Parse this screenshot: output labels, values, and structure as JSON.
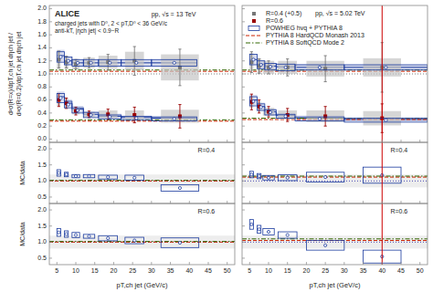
{
  "chart_data": [
    {
      "type": "errorbar",
      "xlim": [
        3,
        52
      ],
      "xticks": [
        5,
        10,
        15,
        20,
        25,
        30,
        35,
        40,
        45,
        50
      ],
      "ylim": [
        -0.05,
        2.05
      ],
      "yticks": [
        {
          "value": 0,
          "label": "0.0"
        },
        0.2,
        0.4,
        0.6,
        0.8,
        {
          "value": 1,
          "label": "1.0"
        },
        1.2,
        1.4,
        1.6,
        1.8,
        {
          "value": 2,
          "label": "2.0"
        }
      ],
      "tick_labels": "y",
      "ylabel": "d²σ(R=x)/dpT,ch jet dηch jet / d²σ(R=0.2)/dpT,ch jet dηch jet",
      "annotations": [
        "ALICE",
        "charged jets with D⁰, 2 < pT,D⁰ < 36 GeV/c",
        "anti-kT, |ηch jet| < 0.9−R",
        "pp, √s = 13 TeV"
      ],
      "reference_line": {
        "value": 1,
        "color": "#444444"
      },
      "series": [
        {
          "type": "errorbar",
          "color": "#777777",
          "marker": "square",
          "x": [
            5.5,
            7.5,
            10.0,
            13.5,
            18.5,
            25.5,
            37.5
          ],
          "values": [
            1.22,
            1.18,
            1.15,
            1.17,
            1.18,
            1.2,
            1.1
          ],
          "errors": [
            0.13,
            0.09,
            0.07,
            0.08,
            0.12,
            0.22,
            0.28
          ],
          "syst": [
            0.14,
            0.1,
            0.08,
            0.08,
            0.1,
            0.14,
            0.2
          ],
          "widths": [
            0.5,
            0.5,
            1.0,
            1.5,
            2.5,
            2.5,
            5.0
          ]
        },
        {
          "type": "errorbar",
          "color": "#990000",
          "marker": "square",
          "x": [
            5.5,
            7.5,
            10.0,
            13.5,
            18.5,
            25.5,
            37.5
          ],
          "values": [
            0.6,
            0.55,
            0.43,
            0.38,
            0.38,
            0.37,
            0.35
          ],
          "errors": [
            0.1,
            0.08,
            0.06,
            0.05,
            0.08,
            0.12,
            0.18
          ],
          "syst": [
            0.09,
            0.07,
            0.05,
            0.04,
            0.06,
            0.07,
            0.1
          ],
          "widths": [
            0.5,
            0.5,
            1.0,
            1.5,
            2.5,
            2.5,
            5.0
          ]
        },
        {
          "type": "box",
          "color": "#1a3a9e",
          "marker": "circle",
          "x": [
            6.0,
            8.0,
            10.5,
            14.0,
            19.0,
            26.0,
            36.0
          ],
          "values": [
            1.26,
            1.2,
            1.17,
            1.17,
            1.17,
            1.17,
            1.17
          ],
          "errors": [
            0.08,
            0.06,
            0.05,
            0.05,
            0.05,
            0.05,
            0.05
          ],
          "widths": [
            1.0,
            1.0,
            1.5,
            2.0,
            3.0,
            4.0,
            6.0
          ]
        },
        {
          "type": "box",
          "color": "#1a3a9e",
          "marker": "circle",
          "x": [
            6.0,
            8.0,
            10.5,
            14.0,
            19.0,
            26.0,
            36.0
          ],
          "values": [
            0.63,
            0.53,
            0.44,
            0.37,
            0.34,
            0.32,
            0.31
          ],
          "errors": [
            0.07,
            0.05,
            0.04,
            0.04,
            0.03,
            0.03,
            0.03
          ],
          "widths": [
            1.0,
            1.0,
            1.5,
            2.0,
            3.0,
            4.0,
            6.0
          ]
        },
        {
          "type": "step",
          "color": "#1a3a9e",
          "bins": [
            5,
            7,
            9,
            12,
            16,
            22,
            30,
            42
          ],
          "values": [
            1.28,
            1.2,
            1.17,
            1.17,
            1.17,
            1.17,
            1.17
          ],
          "errors": [
            0.09,
            0.06,
            0.05,
            0.05,
            0.05,
            0.05,
            0.05
          ]
        },
        {
          "type": "step",
          "color": "#1a3a9e",
          "bins": [
            5,
            7,
            9,
            12,
            16,
            22,
            30,
            42
          ],
          "values": [
            0.65,
            0.55,
            0.46,
            0.38,
            0.35,
            0.33,
            0.32
          ],
          "errors": [
            0.08,
            0.06,
            0.05,
            0.04,
            0.04,
            0.03,
            0.03
          ]
        },
        {
          "type": "hline",
          "color": "#cc2200",
          "line_style": "dashed",
          "value": 1.04
        },
        {
          "type": "hline",
          "color": "#336600",
          "line_style": "dashdot",
          "value": 1.06
        },
        {
          "type": "hline",
          "color": "#cc2200",
          "line_style": "dashed",
          "value": 0.275
        },
        {
          "type": "hline",
          "color": "#336600",
          "line_style": "dashdot",
          "value": 0.295
        }
      ]
    },
    {
      "type": "errorbar",
      "xlim": [
        3,
        52
      ],
      "xticks": [
        5,
        10,
        15,
        20,
        25,
        30,
        35,
        40,
        45,
        50
      ],
      "ylim": [
        -0.05,
        2.05
      ],
      "yticks": [
        {
          "value": 0,
          "label": "0.0"
        },
        0.2,
        0.4,
        0.6,
        0.8,
        {
          "value": 1,
          "label": "1.0"
        },
        1.2,
        1.4,
        1.6,
        1.8,
        {
          "value": 2,
          "label": "2.0"
        }
      ],
      "tick_labels": false,
      "legend": "upper left",
      "annotations": [
        "pp, √s = 5.02 TeV"
      ],
      "reference_line": {
        "value": 1,
        "color": "#444444"
      },
      "vline": {
        "value": 40.0,
        "color": "#cc0000"
      },
      "series": [
        {
          "name": "R=0.4 (+0.5)",
          "type": "errorbar",
          "color": "#777777",
          "marker": "square",
          "x": [
            5.5,
            7.5,
            10.0,
            15.0,
            25.0,
            40.0
          ],
          "values": [
            1.18,
            1.12,
            1.1,
            1.1,
            1.08,
            1.1
          ],
          "errors": [
            0.16,
            0.11,
            0.1,
            0.13,
            0.2,
            0.38
          ],
          "syst": [
            0.14,
            0.12,
            0.1,
            0.1,
            0.12,
            0.14
          ],
          "widths": [
            0.5,
            0.5,
            1.5,
            2.5,
            5.0,
            5.0
          ]
        },
        {
          "name": "R=0.6",
          "type": "errorbar",
          "color": "#990000",
          "marker": "square",
          "x": [
            5.5,
            7.5,
            10.0,
            15.0,
            25.0,
            40.0
          ],
          "values": [
            0.57,
            0.5,
            0.42,
            0.37,
            0.35,
            0.32
          ],
          "errors": [
            0.12,
            0.1,
            0.08,
            0.1,
            0.15,
            0.22
          ],
          "syst": [
            0.09,
            0.08,
            0.06,
            0.07,
            0.09,
            0.11
          ],
          "widths": [
            0.5,
            0.5,
            1.5,
            2.5,
            5.0,
            5.0
          ]
        },
        {
          "name": "POWHEG hvq + PYTHIA 8",
          "type": "box",
          "color": "#1a3a9e",
          "marker": "circle",
          "x": [
            6.0,
            8.0,
            10.5,
            14.5,
            23.5,
            41.0
          ],
          "values": [
            1.22,
            1.14,
            1.11,
            1.1,
            1.1,
            1.1
          ],
          "errors": [
            0.08,
            0.06,
            0.05,
            0.05,
            0.04,
            0.04
          ],
          "widths": [
            1.0,
            1.0,
            1.5,
            2.5,
            6.5,
            11.0
          ]
        },
        {
          "type": "box",
          "color": "#1a3a9e",
          "marker": "circle",
          "x": [
            6.0,
            8.0,
            10.5,
            14.5,
            23.5,
            41.0
          ],
          "values": [
            0.58,
            0.49,
            0.41,
            0.35,
            0.31,
            0.29
          ],
          "errors": [
            0.07,
            0.05,
            0.04,
            0.03,
            0.03,
            0.03
          ],
          "widths": [
            1.0,
            1.0,
            1.5,
            2.5,
            6.5,
            11.0
          ]
        },
        {
          "type": "step",
          "color": "#1a3a9e",
          "bins": [
            5,
            7,
            9,
            12,
            17,
            30,
            52
          ],
          "values": [
            1.22,
            1.15,
            1.12,
            1.11,
            1.1,
            1.1
          ],
          "errors": [
            0.08,
            0.06,
            0.05,
            0.05,
            0.05,
            0.04
          ]
        },
        {
          "type": "step",
          "color": "#1a3a9e",
          "bins": [
            5,
            7,
            9,
            12,
            17,
            30,
            52
          ],
          "values": [
            0.6,
            0.5,
            0.42,
            0.36,
            0.32,
            0.3
          ],
          "errors": [
            0.08,
            0.06,
            0.05,
            0.04,
            0.04,
            0.03
          ]
        },
        {
          "name": "PYTHIA 8 HardQCD Monash 2013",
          "type": "hline",
          "color": "#cc2200",
          "line_style": "dashed",
          "value": 1.04
        },
        {
          "name": "PYTHIA 8 SoftQCD Mode 2",
          "type": "hline",
          "color": "#336600",
          "line_style": "dashdot",
          "value": 1.06
        },
        {
          "type": "hline",
          "color": "#cc2200",
          "line_style": "dashed",
          "value": 0.3
        },
        {
          "type": "hline",
          "color": "#336600",
          "line_style": "dashdot",
          "value": 0.32
        }
      ]
    },
    {
      "type": "ratio",
      "xlim": [
        3,
        52
      ],
      "xticks": [
        5,
        10,
        15,
        20,
        25,
        30,
        35,
        40,
        45,
        50
      ],
      "ylim": [
        0.3,
        2.2
      ],
      "yticks": [
        0.5,
        {
          "value": 1,
          "label": "1.0"
        },
        1.5,
        {
          "value": 2,
          "label": "2.0"
        }
      ],
      "tick_labels": "y",
      "ylabel": "MC/data",
      "annotations": [
        "R=0.4"
      ],
      "band": {
        "values": [
          0.8,
          1.2
        ],
        "color": "#cccccc"
      },
      "reference_line": {
        "value": 1.0,
        "color": "#000099"
      },
      "series": [
        {
          "type": "box",
          "color": "#1a3a9e",
          "marker": "circle",
          "x": [
            5.5,
            7.5,
            10.0,
            13.5,
            18.5,
            25.5,
            37.5
          ],
          "values": [
            1.25,
            1.2,
            1.15,
            1.15,
            1.12,
            1.1,
            0.78
          ],
          "errors": [
            0.1,
            0.07,
            0.05,
            0.05,
            0.06,
            0.08,
            0.1
          ],
          "widths": [
            0.5,
            0.5,
            1.0,
            1.5,
            2.5,
            2.5,
            5.0
          ]
        },
        {
          "type": "hline",
          "color": "#cc2200",
          "line_style": "dashed",
          "value": 1.0
        },
        {
          "type": "hline",
          "color": "#336600",
          "line_style": "dashdot",
          "value": 1.02
        }
      ]
    },
    {
      "type": "ratio",
      "xlim": [
        3,
        52
      ],
      "xticks": [
        5,
        10,
        15,
        20,
        25,
        30,
        35,
        40,
        45,
        50
      ],
      "ylim": [
        0.3,
        2.2
      ],
      "yticks": [
        0.5,
        {
          "value": 1,
          "label": "1.0"
        },
        1.5,
        {
          "value": 2,
          "label": "2.0"
        }
      ],
      "tick_labels": false,
      "annotations": [
        "R=0.4"
      ],
      "band": {
        "values": [
          0.8,
          1.2
        ],
        "color": "#cccccc"
      },
      "reference_line": {
        "value": 1.0,
        "color": "#000099"
      },
      "vline": {
        "value": 40.0,
        "color": "#cc0000"
      },
      "series": [
        {
          "type": "box",
          "color": "#1a3a9e",
          "marker": "circle",
          "x": [
            5.5,
            7.5,
            10.0,
            15.0,
            25.0,
            40.0
          ],
          "values": [
            1.2,
            1.15,
            1.1,
            1.1,
            1.12,
            1.18
          ],
          "errors": [
            0.1,
            0.08,
            0.07,
            0.09,
            0.15,
            0.25
          ],
          "widths": [
            0.5,
            0.5,
            1.5,
            2.5,
            5.0,
            5.0
          ]
        },
        {
          "type": "hline",
          "color": "#cc2200",
          "line_style": "dashed",
          "value": 1.12
        },
        {
          "type": "hline",
          "color": "#336600",
          "line_style": "dashdot",
          "value": 1.15
        }
      ]
    },
    {
      "type": "ratio",
      "xlim": [
        3,
        52
      ],
      "xticks": [
        5,
        10,
        15,
        20,
        25,
        30,
        35,
        40,
        45,
        50
      ],
      "ylim": [
        0.3,
        2.2
      ],
      "yticks": [
        0.5,
        {
          "value": 1,
          "label": "1.0"
        },
        1.5,
        {
          "value": 2,
          "label": "2.0"
        }
      ],
      "tick_labels": true,
      "ylabel": "MC/data",
      "xlabel": "pT,ch jet (GeV/c)",
      "annotations": [
        "R=0.6"
      ],
      "band": {
        "values": [
          0.8,
          1.2
        ],
        "color": "#cccccc"
      },
      "reference_line": {
        "value": 1.0,
        "color": "#000099"
      },
      "series": [
        {
          "type": "box",
          "color": "#1a3a9e",
          "marker": "circle",
          "x": [
            5.5,
            7.5,
            10.0,
            13.5,
            18.5,
            25.5,
            37.5
          ],
          "values": [
            1.3,
            1.25,
            1.22,
            1.18,
            1.12,
            1.05,
            0.98
          ],
          "errors": [
            0.12,
            0.1,
            0.08,
            0.06,
            0.08,
            0.1,
            0.15
          ],
          "widths": [
            0.5,
            0.5,
            1.0,
            1.5,
            2.5,
            2.5,
            5.0
          ]
        },
        {
          "type": "hline",
          "color": "#cc2200",
          "line_style": "dashed",
          "value": 1.0
        },
        {
          "type": "hline",
          "color": "#336600",
          "line_style": "dashdot",
          "value": 1.02
        }
      ]
    },
    {
      "type": "ratio",
      "xlim": [
        3,
        52
      ],
      "xticks": [
        5,
        10,
        15,
        20,
        25,
        30,
        35,
        40,
        45,
        50
      ],
      "ylim": [
        0.3,
        2.2
      ],
      "yticks": [
        0.5,
        {
          "value": 1,
          "label": "1.0"
        },
        1.5,
        {
          "value": 2,
          "label": "2.0"
        }
      ],
      "tick_labels": "x",
      "xlabel": "pT,ch jet (GeV/c)",
      "annotations": [
        "R=0.6"
      ],
      "band": {
        "values": [
          0.8,
          1.2
        ],
        "color": "#cccccc"
      },
      "reference_line": {
        "value": 1.0,
        "color": "#000099"
      },
      "vline": {
        "value": 40.0,
        "color": "#cc0000"
      },
      "series": [
        {
          "type": "box",
          "color": "#1a3a9e",
          "marker": "circle",
          "x": [
            5.5,
            7.5,
            10.0,
            15.0,
            25.0,
            40.0
          ],
          "values": [
            1.55,
            1.4,
            1.32,
            1.22,
            0.9,
            0.55
          ],
          "errors": [
            0.15,
            0.12,
            0.1,
            0.1,
            0.15,
            0.2
          ],
          "widths": [
            0.5,
            0.5,
            1.5,
            2.5,
            5.0,
            5.0
          ]
        },
        {
          "type": "hline",
          "color": "#cc2200",
          "line_style": "dashed",
          "value": 1.05
        },
        {
          "type": "hline",
          "color": "#336600",
          "line_style": "dashdot",
          "value": 1.1
        }
      ]
    }
  ]
}
